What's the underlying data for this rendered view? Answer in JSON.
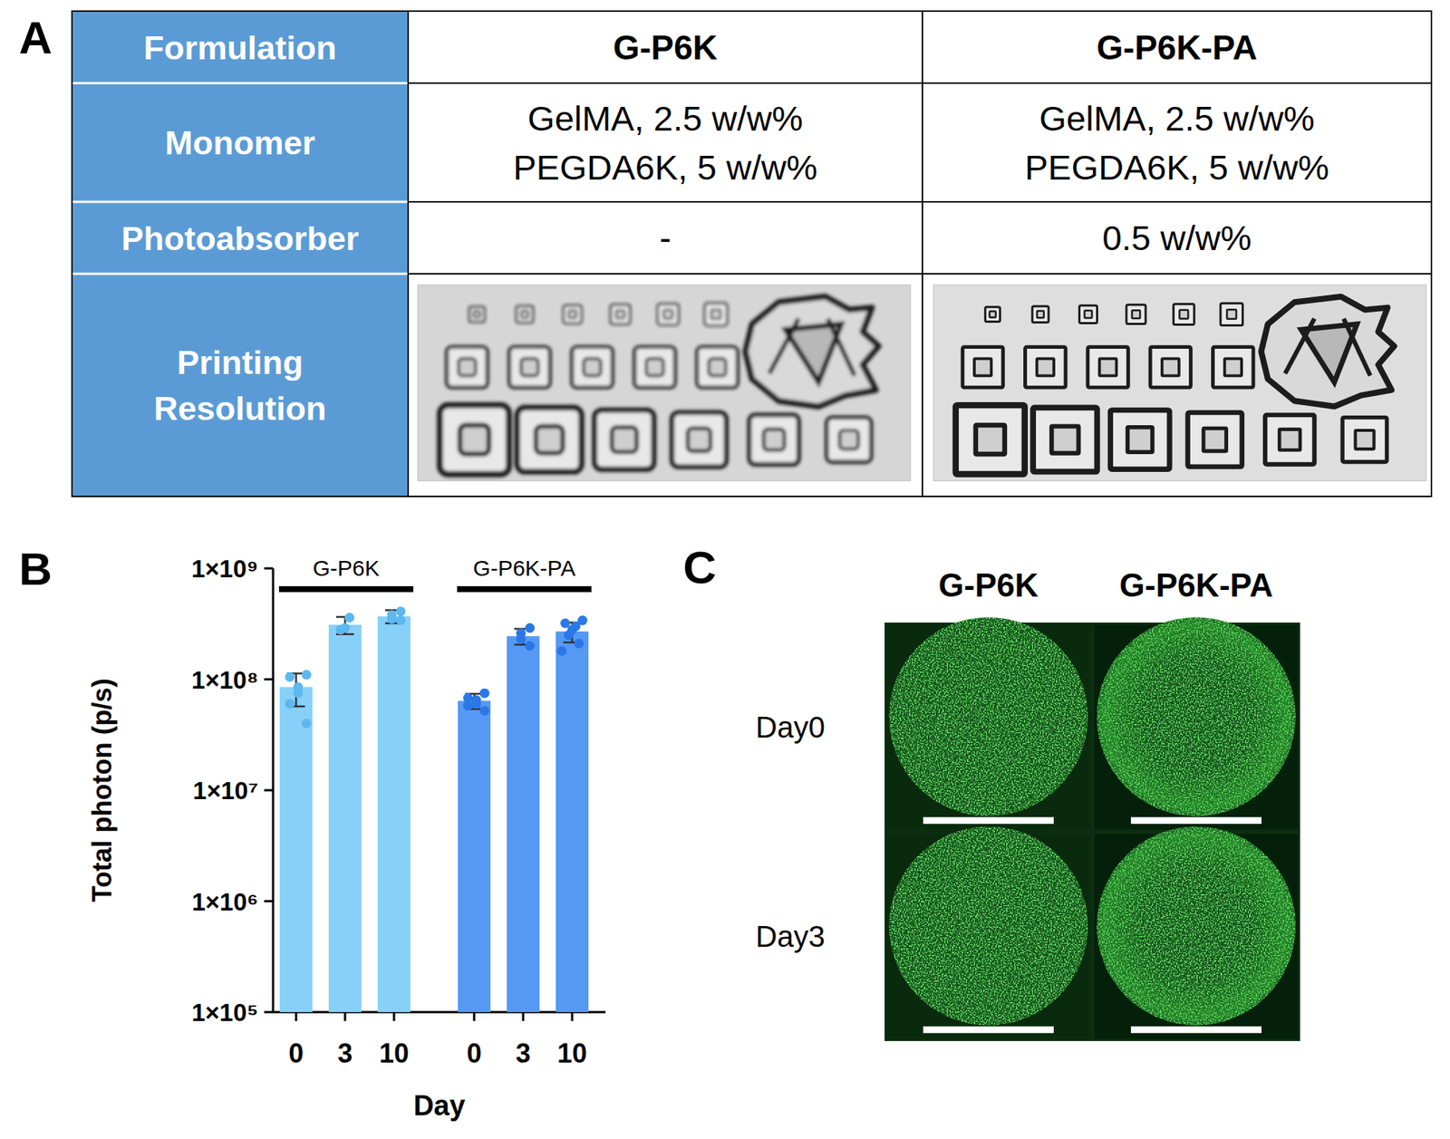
{
  "panel_labels": [
    "A",
    "B",
    "C"
  ],
  "table": {
    "rows": [
      {
        "header": [
          "Formulation"
        ],
        "cells": [
          [
            "G-P6K"
          ],
          [
            "G-P6K-PA"
          ]
        ]
      },
      {
        "header": [
          "Monomer"
        ],
        "cells": [
          [
            "GelMA, 2.5 w/w%",
            "PEGDA6K, 5 w/w%"
          ],
          [
            "GelMA, 2.5 w/w%",
            "PEGDA6K, 5 w/w%"
          ]
        ]
      },
      {
        "header": [
          "Photoabsorber"
        ],
        "cells": [
          [
            "-"
          ],
          [
            "0.5 w/w%"
          ]
        ]
      },
      {
        "header": [
          "Printing",
          "Resolution"
        ]
      }
    ]
  },
  "chart_data": {
    "type": "bar",
    "log": "y",
    "grid": false,
    "xlabel": "Day",
    "ylabel": "Total photon (p/s)",
    "categories": [
      "0",
      "3",
      "10"
    ],
    "ylim": [
      100000,
      1000000000
    ],
    "yticks": [
      {
        "value": 100000,
        "label": "1×10⁵"
      },
      {
        "value": 1000000,
        "label": "1×10⁶"
      },
      {
        "value": 10000000,
        "label": "1×10⁷"
      },
      {
        "value": 100000000,
        "label": "1×10⁸"
      },
      {
        "value": 1000000000,
        "label": "1×10⁹"
      }
    ],
    "series": [
      {
        "name": "G-P6K",
        "color": "#87d0f8",
        "values": [
          85000000,
          310000000,
          370000000
        ],
        "errors": [
          28000000,
          55000000,
          50000000
        ],
        "points": [
          [
            110000000,
            105000000,
            85000000,
            75000000,
            60000000,
            40000000
          ],
          [
            360000000,
            290000000,
            280000000
          ],
          [
            410000000,
            380000000,
            350000000,
            340000000
          ]
        ]
      },
      {
        "name": "G-P6K-PA",
        "color": "#5599f5",
        "values": [
          64000000,
          245000000,
          270000000
        ],
        "errors": [
          10000000,
          40000000,
          55000000
        ],
        "points": [
          [
            75000000,
            68000000,
            65000000,
            60000000,
            58000000,
            52000000
          ],
          [
            290000000,
            260000000,
            230000000,
            200000000
          ],
          [
            340000000,
            320000000,
            300000000,
            280000000,
            250000000,
            210000000,
            180000000
          ]
        ]
      }
    ]
  },
  "panel_c": {
    "columns": [
      "G-P6K",
      "G-P6K-PA"
    ],
    "rows": [
      "Day0",
      "Day3"
    ]
  }
}
